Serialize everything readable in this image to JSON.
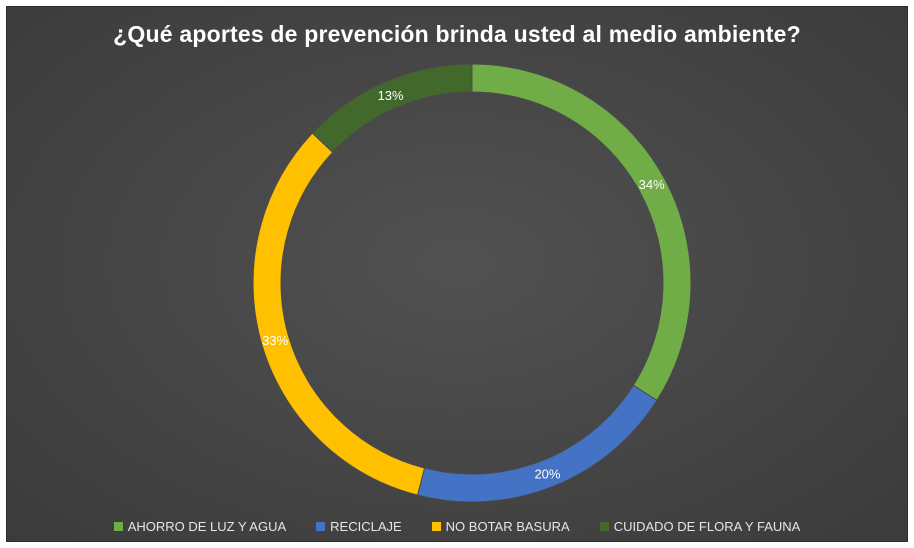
{
  "colors": {
    "background": "#474747",
    "text": "#ffffff",
    "legend_text": "#e6e6e6"
  },
  "chart_data": {
    "type": "pie",
    "style": "doughnut",
    "title": "¿Qué aportes de prevención brinda usted al medio ambiente?",
    "legend_position": "bottom",
    "categories": [
      "AHORRO DE LUZ Y AGUA",
      "RECICLAJE",
      "NO BOTAR BASURA",
      "CUIDADO DE FLORA Y FAUNA"
    ],
    "values": [
      34,
      20,
      33,
      13
    ],
    "labels": [
      "34%",
      "20%",
      "33%",
      "13%"
    ],
    "colors": [
      "#70ad47",
      "#4472c4",
      "#ffc000",
      "#43682b"
    ]
  }
}
